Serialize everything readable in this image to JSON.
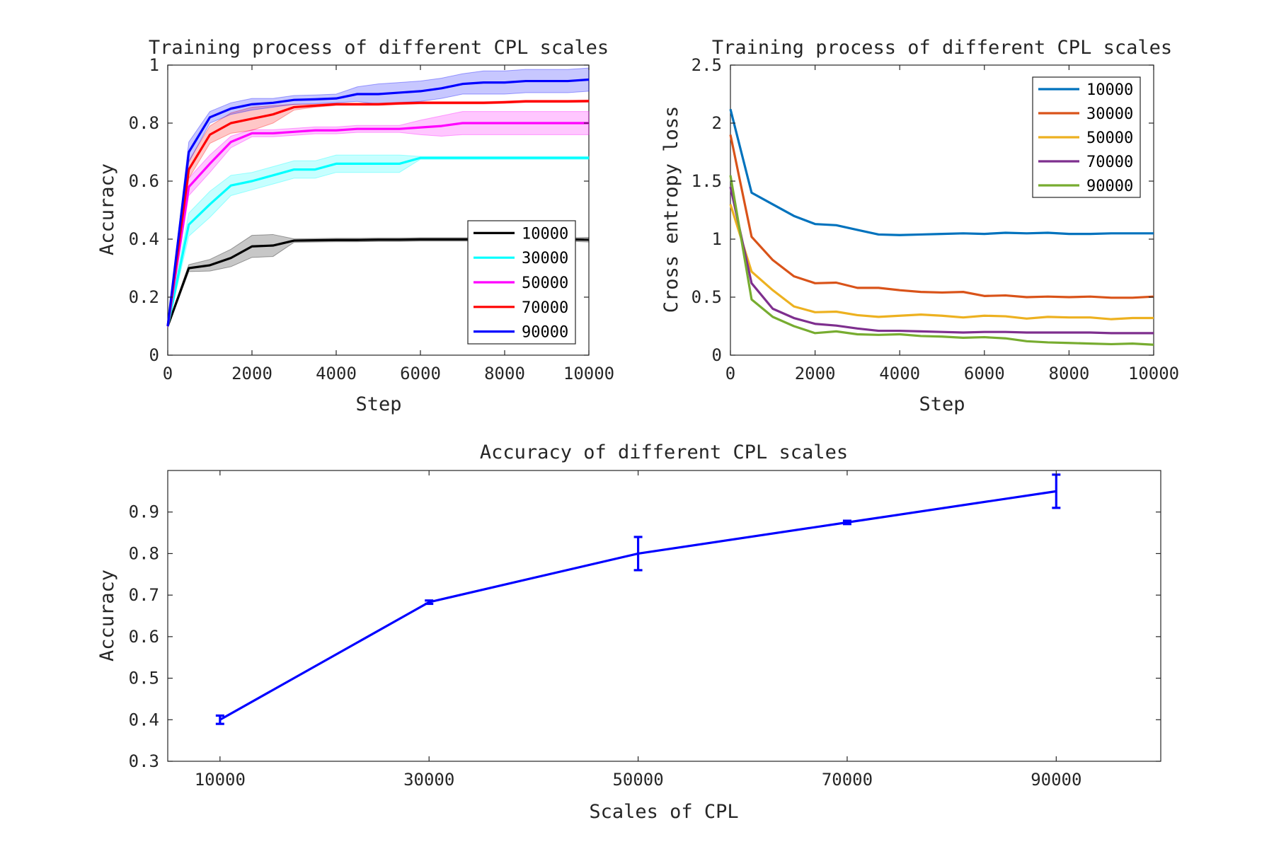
{
  "chart_data": [
    {
      "id": "acc",
      "type": "line",
      "title": "Training process of different CPL scales",
      "xlabel": "Step",
      "ylabel": "Accuracy",
      "xlim": [
        0,
        10000
      ],
      "ylim": [
        0,
        1
      ],
      "xticks": [
        0,
        2000,
        4000,
        6000,
        8000,
        10000
      ],
      "yticks": [
        0,
        0.2,
        0.4,
        0.6,
        0.8,
        1
      ],
      "ytick_labels": [
        "0",
        "0.2",
        "0.4",
        "0.6",
        "0.8",
        "1"
      ],
      "legend_position": "lower-right",
      "shaded_band": true,
      "x": [
        0,
        500,
        1000,
        1500,
        2000,
        2500,
        3000,
        3500,
        4000,
        4500,
        5000,
        5500,
        6000,
        6500,
        7000,
        7500,
        8000,
        8500,
        9000,
        9500,
        10000
      ],
      "series": [
        {
          "name": "10000",
          "color": "#000000",
          "values": [
            0.1,
            0.3,
            0.31,
            0.335,
            0.375,
            0.378,
            0.395,
            0.396,
            0.397,
            0.397,
            0.398,
            0.398,
            0.399,
            0.399,
            0.399,
            0.399,
            0.399,
            0.399,
            0.399,
            0.399,
            0.398
          ],
          "band": [
            0.005,
            0.012,
            0.02,
            0.03,
            0.038,
            0.038,
            0.006,
            0.006,
            0.006,
            0.006,
            0.006,
            0.006,
            0.006,
            0.006,
            0.006,
            0.006,
            0.006,
            0.006,
            0.006,
            0.006,
            0.008
          ]
        },
        {
          "name": "30000",
          "color": "#00FFFF",
          "values": [
            0.1,
            0.45,
            0.52,
            0.585,
            0.6,
            0.62,
            0.64,
            0.64,
            0.66,
            0.66,
            0.66,
            0.66,
            0.68,
            0.68,
            0.68,
            0.68,
            0.68,
            0.68,
            0.68,
            0.68,
            0.68
          ],
          "band": [
            0.005,
            0.04,
            0.045,
            0.035,
            0.03,
            0.03,
            0.03,
            0.03,
            0.03,
            0.03,
            0.03,
            0.03,
            0.005,
            0.005,
            0.005,
            0.005,
            0.005,
            0.005,
            0.005,
            0.005,
            0.005
          ]
        },
        {
          "name": "50000",
          "color": "#FF00FF",
          "values": [
            0.1,
            0.58,
            0.66,
            0.735,
            0.765,
            0.765,
            0.77,
            0.775,
            0.775,
            0.78,
            0.78,
            0.78,
            0.785,
            0.79,
            0.8,
            0.8,
            0.8,
            0.8,
            0.8,
            0.8,
            0.8
          ],
          "band": [
            0.005,
            0.03,
            0.03,
            0.02,
            0.012,
            0.012,
            0.012,
            0.012,
            0.012,
            0.012,
            0.012,
            0.012,
            0.025,
            0.035,
            0.04,
            0.04,
            0.04,
            0.04,
            0.04,
            0.04,
            0.04
          ]
        },
        {
          "name": "70000",
          "color": "#FF0000",
          "values": [
            0.1,
            0.64,
            0.76,
            0.8,
            0.815,
            0.83,
            0.855,
            0.86,
            0.865,
            0.865,
            0.865,
            0.868,
            0.87,
            0.87,
            0.87,
            0.87,
            0.872,
            0.875,
            0.875,
            0.875,
            0.876
          ],
          "band": [
            0.005,
            0.03,
            0.03,
            0.035,
            0.04,
            0.03,
            0.01,
            0.005,
            0.004,
            0.004,
            0.004,
            0.004,
            0.004,
            0.004,
            0.004,
            0.004,
            0.004,
            0.004,
            0.004,
            0.004,
            0.004
          ]
        },
        {
          "name": "90000",
          "color": "#0000FF",
          "values": [
            0.1,
            0.7,
            0.82,
            0.85,
            0.865,
            0.87,
            0.88,
            0.882,
            0.885,
            0.9,
            0.9,
            0.905,
            0.91,
            0.92,
            0.935,
            0.94,
            0.94,
            0.945,
            0.945,
            0.945,
            0.95
          ],
          "band": [
            0.005,
            0.035,
            0.02,
            0.02,
            0.02,
            0.015,
            0.015,
            0.015,
            0.015,
            0.025,
            0.035,
            0.035,
            0.035,
            0.035,
            0.035,
            0.04,
            0.04,
            0.04,
            0.04,
            0.04,
            0.04
          ]
        }
      ]
    },
    {
      "id": "loss",
      "type": "line",
      "title": "Training process of different CPL scales",
      "xlabel": "Step",
      "ylabel": "Cross entropy loss",
      "xlim": [
        0,
        10000
      ],
      "ylim": [
        0,
        2.5
      ],
      "xticks": [
        0,
        2000,
        4000,
        6000,
        8000,
        10000
      ],
      "yticks": [
        0,
        0.5,
        1,
        1.5,
        2,
        2.5
      ],
      "ytick_labels": [
        "0",
        "0.5",
        "1",
        "1.5",
        "2",
        "2.5"
      ],
      "legend_position": "top-right",
      "x": [
        0,
        500,
        1000,
        1500,
        2000,
        2500,
        3000,
        3500,
        4000,
        4500,
        5000,
        5500,
        6000,
        6500,
        7000,
        7500,
        8000,
        8500,
        9000,
        9500,
        10000
      ],
      "series": [
        {
          "name": "10000",
          "color": "#0072BD",
          "values": [
            2.12,
            1.4,
            1.3,
            1.2,
            1.13,
            1.12,
            1.08,
            1.04,
            1.035,
            1.04,
            1.045,
            1.05,
            1.045,
            1.055,
            1.05,
            1.055,
            1.045,
            1.045,
            1.05,
            1.05,
            1.05
          ]
        },
        {
          "name": "30000",
          "color": "#D95319",
          "values": [
            1.9,
            1.02,
            0.82,
            0.68,
            0.62,
            0.625,
            0.58,
            0.58,
            0.56,
            0.545,
            0.54,
            0.545,
            0.51,
            0.515,
            0.5,
            0.505,
            0.5,
            0.505,
            0.495,
            0.495,
            0.505
          ]
        },
        {
          "name": "50000",
          "color": "#EDB120",
          "values": [
            1.3,
            0.72,
            0.56,
            0.42,
            0.37,
            0.375,
            0.345,
            0.33,
            0.34,
            0.35,
            0.34,
            0.325,
            0.34,
            0.335,
            0.315,
            0.33,
            0.325,
            0.325,
            0.31,
            0.32,
            0.32
          ]
        },
        {
          "name": "70000",
          "color": "#7E2F8E",
          "values": [
            1.45,
            0.62,
            0.4,
            0.32,
            0.27,
            0.255,
            0.23,
            0.21,
            0.21,
            0.205,
            0.2,
            0.195,
            0.2,
            0.2,
            0.195,
            0.195,
            0.195,
            0.195,
            0.19,
            0.19,
            0.19
          ]
        },
        {
          "name": "90000",
          "color": "#77AC30",
          "values": [
            1.55,
            0.48,
            0.33,
            0.25,
            0.19,
            0.205,
            0.18,
            0.175,
            0.18,
            0.165,
            0.16,
            0.15,
            0.155,
            0.145,
            0.12,
            0.11,
            0.105,
            0.1,
            0.095,
            0.1,
            0.09
          ]
        }
      ]
    },
    {
      "id": "scales",
      "type": "line",
      "title": "Accuracy of different CPL scales",
      "xlabel": "Scales of CPL",
      "ylabel": "Accuracy",
      "xlim": [
        5000,
        100000
      ],
      "ylim": [
        0.3,
        1.0
      ],
      "xticks": [
        10000,
        30000,
        50000,
        70000,
        90000
      ],
      "yticks": [
        0.3,
        0.4,
        0.5,
        0.6,
        0.7,
        0.8,
        0.9
      ],
      "ytick_labels": [
        "0.3",
        "0.4",
        "0.5",
        "0.6",
        "0.7",
        "0.8",
        "0.9"
      ],
      "error_bars": true,
      "series": [
        {
          "name": "",
          "color": "#0000FF",
          "x": [
            10000,
            30000,
            50000,
            70000,
            90000
          ],
          "values": [
            0.4,
            0.683,
            0.8,
            0.875,
            0.95
          ],
          "error": [
            0.01,
            0.004,
            0.04,
            0.004,
            0.04
          ]
        }
      ]
    }
  ]
}
